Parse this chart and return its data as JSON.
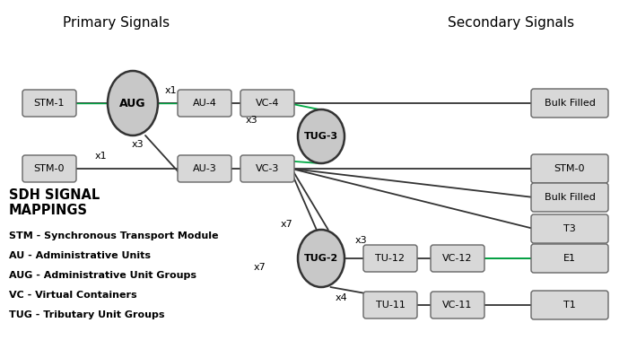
{
  "title_primary": "Primary Signals",
  "title_secondary": "Secondary Signals",
  "background_color": "#ffffff",
  "box_facecolor": "#d8d8d8",
  "box_edgecolor": "#666666",
  "ellipse_facecolor": "#c8c8c8",
  "ellipse_edgecolor": "#333333",
  "line_color_black": "#333333",
  "line_color_green": "#00aa44",
  "legend_lines": [
    "STM - Synchronous Transport Module",
    "AU - Administrative Units",
    "AUG - Administrative Unit Groups",
    "VC - Virtual Containers",
    "TUG - Tributary Unit Groups"
  ],
  "legend_title": "SDH SIGNAL\nMAPPINGS"
}
